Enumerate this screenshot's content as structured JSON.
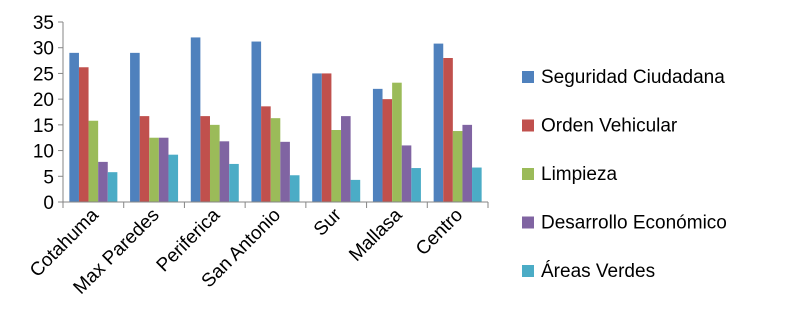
{
  "chart_data": {
    "type": "bar",
    "categories": [
      "Cotahuma",
      "Max Paredes",
      "Periferica",
      "San Antonio",
      "Sur",
      "Mallasa",
      "Centro"
    ],
    "series": [
      {
        "name": "Seguridad Ciudadana",
        "color": "#4f81bd",
        "values": [
          29,
          29,
          32,
          31.2,
          25,
          22,
          30.8
        ]
      },
      {
        "name": "Orden Vehicular",
        "color": "#c0504d",
        "values": [
          26.2,
          16.7,
          16.7,
          18.6,
          25,
          20,
          28
        ]
      },
      {
        "name": "Limpieza",
        "color": "#9bbb59",
        "values": [
          15.8,
          12.5,
          15,
          16.3,
          14,
          23.2,
          13.8
        ]
      },
      {
        "name": "Desarrollo Económico",
        "color": "#8064a2",
        "values": [
          7.8,
          12.5,
          11.8,
          11.7,
          16.7,
          11,
          15
        ]
      },
      {
        "name": "Áreas Verdes",
        "color": "#4bacc6",
        "values": [
          5.8,
          9.2,
          7.4,
          5.2,
          4.3,
          6.6,
          6.7
        ]
      }
    ],
    "yticks": [
      "0",
      "5",
      "10",
      "15",
      "20",
      "25",
      "30",
      "35"
    ],
    "ylim": [
      0,
      35
    ],
    "grid": false,
    "legend_position": "right"
  }
}
